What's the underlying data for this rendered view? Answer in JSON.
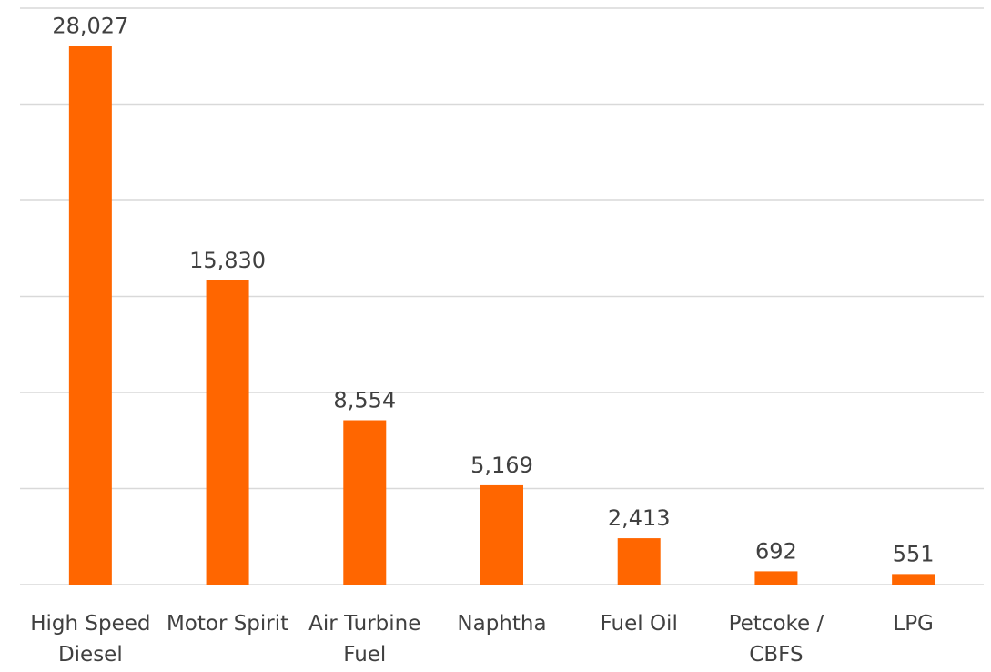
{
  "chart_data": {
    "type": "bar",
    "categories": [
      "High Speed Diesel",
      "Motor Spirit",
      "Air Turbine Fuel",
      "Naphtha",
      "Fuel Oil",
      "Petcoke / CBFS",
      "LPG"
    ],
    "values": [
      28027,
      15830,
      8554,
      5169,
      2413,
      692,
      551
    ],
    "value_labels": [
      "28,027",
      "15,830",
      "8,554",
      "5,169",
      "2,413",
      "692",
      "551"
    ],
    "color": "#ff6600",
    "ylim": [
      0,
      30000
    ],
    "yticks": [
      0,
      5000,
      10000,
      15000,
      20000,
      25000,
      30000
    ],
    "grid": true
  }
}
